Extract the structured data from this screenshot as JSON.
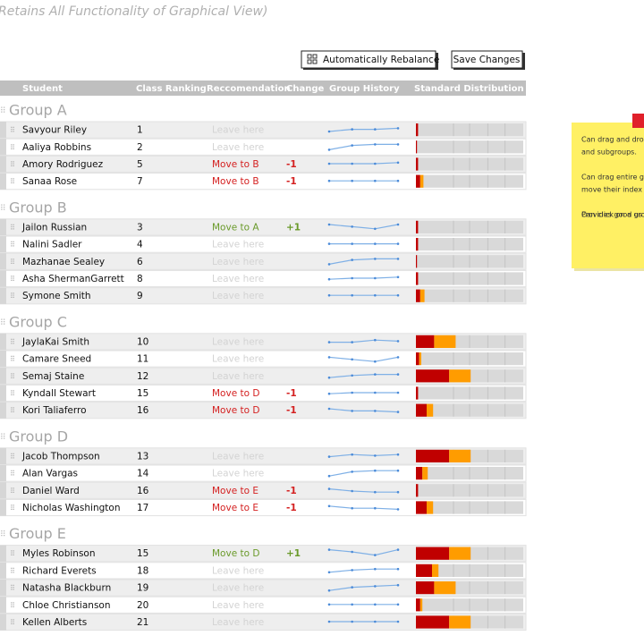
{
  "header": {
    "title": "Retains All Functionality of Graphical View)"
  },
  "buttons": [
    "Automatically Rebalance",
    "Save Changes"
  ],
  "columns": [
    "Student",
    "Class Ranking",
    "Reccomendation",
    "Change",
    "Group History",
    "Standard Distribution"
  ],
  "groups": [
    {
      "name": "Group A",
      "rows": [
        {
          "name": "Savyour Riley",
          "rank": 1,
          "recommendation": "Leave here",
          "history": [
            3,
            5,
            5,
            6
          ],
          "distribution": [
            2,
            0
          ]
        },
        {
          "name": "Aaliya Robbins",
          "rank": 2,
          "recommendation": "Leave here",
          "history": [
            2,
            6,
            7,
            7
          ],
          "distribution": [
            1,
            0
          ]
        },
        {
          "name": "Amory Rodriguez",
          "rank": 5,
          "recommendation": "Move to B",
          "change": "-1",
          "history": [
            5,
            5,
            5,
            6
          ],
          "distribution": [
            2,
            0
          ]
        },
        {
          "name": "Sanaa Rose",
          "rank": 7,
          "recommendation": "Move to B",
          "change": "-1",
          "history": [
            5,
            5,
            5,
            5
          ],
          "distribution": [
            4,
            3
          ]
        }
      ]
    },
    {
      "name": "Group B",
      "rows": [
        {
          "name": "Jailon Russian",
          "rank": 3,
          "recommendation": "Move to A",
          "change": "+1",
          "history": [
            7,
            5,
            3,
            7
          ],
          "distribution": [
            2,
            0
          ]
        },
        {
          "name": "Nalini Sadler",
          "rank": 4,
          "recommendation": "Leave here",
          "history": [
            5,
            5,
            5,
            5
          ],
          "distribution": [
            2,
            0
          ]
        },
        {
          "name": "Mazhanae Sealey",
          "rank": 6,
          "recommendation": "Leave here",
          "history": [
            2,
            6,
            7,
            7
          ],
          "distribution": [
            1,
            0
          ]
        },
        {
          "name": "Asha ShermanGarrett",
          "rank": 8,
          "recommendation": "Leave here",
          "history": [
            4,
            5,
            5,
            6
          ],
          "distribution": [
            2,
            0
          ]
        },
        {
          "name": "Symone Smith",
          "rank": 9,
          "recommendation": "Leave here",
          "history": [
            5,
            5,
            5,
            5
          ],
          "distribution": [
            4,
            4
          ]
        }
      ]
    },
    {
      "name": "Group C",
      "rows": [
        {
          "name": "JaylaKai Smith",
          "rank": 10,
          "recommendation": "Leave here",
          "history": [
            4,
            4,
            6,
            5
          ],
          "distribution": [
            17,
            20
          ]
        },
        {
          "name": "Camare Sneed",
          "rank": 11,
          "recommendation": "Leave here",
          "history": [
            6,
            4,
            2,
            6
          ],
          "distribution": [
            3,
            2
          ]
        },
        {
          "name": "Semaj Staine",
          "rank": 12,
          "recommendation": "Leave here",
          "history": [
            3,
            5,
            6,
            6
          ],
          "distribution": [
            31,
            20
          ]
        },
        {
          "name": "Kyndall Stewart",
          "rank": 15,
          "recommendation": "Move to D",
          "change": "-1",
          "history": [
            4,
            5,
            5,
            5
          ],
          "distribution": [
            2,
            0
          ]
        },
        {
          "name": "Kori Taliaferro",
          "rank": 16,
          "recommendation": "Move to D",
          "change": "-1",
          "history": [
            6,
            4,
            4,
            3
          ],
          "distribution": [
            10,
            6
          ]
        }
      ]
    },
    {
      "name": "Group D",
      "rows": [
        {
          "name": "Jacob Thompson",
          "rank": 13,
          "recommendation": "Leave here",
          "history": [
            4,
            6,
            5,
            6
          ],
          "distribution": [
            31,
            20
          ]
        },
        {
          "name": "Alan Vargas",
          "rank": 14,
          "recommendation": "Leave here",
          "history": [
            2,
            6,
            7,
            7
          ],
          "distribution": [
            6,
            5
          ]
        },
        {
          "name": "Daniel Ward",
          "rank": 16,
          "recommendation": "Move to E",
          "change": "-1",
          "history": [
            6,
            4,
            3,
            3
          ],
          "distribution": [
            2,
            0
          ]
        },
        {
          "name": "Nicholas Washington",
          "rank": 17,
          "recommendation": "Move to E",
          "change": "-1",
          "history": [
            6,
            4,
            4,
            3
          ],
          "distribution": [
            10,
            6
          ]
        }
      ]
    },
    {
      "name": "Group E",
      "rows": [
        {
          "name": "Myles Robinson",
          "rank": 15,
          "recommendation": "Move to D",
          "change": "+1",
          "history": [
            8,
            6,
            3,
            8
          ],
          "distribution": [
            31,
            20
          ]
        },
        {
          "name": "Richard Everets",
          "rank": 18,
          "recommendation": "Leave here",
          "history": [
            3,
            5,
            6,
            6
          ],
          "distribution": [
            15,
            6
          ]
        },
        {
          "name": "Natasha Blackburn",
          "rank": 19,
          "recommendation": "Leave here",
          "history": [
            2,
            5,
            6,
            7
          ],
          "distribution": [
            17,
            20
          ]
        },
        {
          "name": "Chloe Christianson",
          "rank": 20,
          "recommendation": "Leave here",
          "history": [
            5,
            5,
            5,
            5
          ],
          "distribution": [
            4,
            2
          ]
        },
        {
          "name": "Kellen Alberts",
          "rank": 21,
          "recommendation": "Leave here",
          "history": [
            5,
            5,
            5,
            5
          ],
          "distribution": [
            31,
            20
          ]
        }
      ]
    }
  ],
  "note": [
    "Can drag and drop",
    "and subgroups.",
    "Can drag entire g",
    "move their index",
    "Can click on a gro",
    "Provides good us"
  ]
}
